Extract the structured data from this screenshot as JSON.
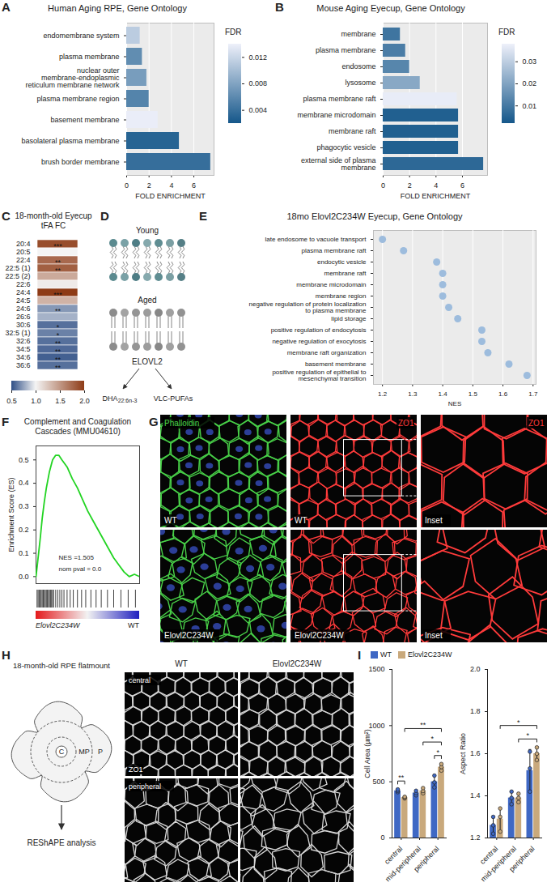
{
  "chart_data": [
    {
      "panel": "A",
      "type": "bar",
      "orientation": "horizontal",
      "title": "Human Aging RPE, Gene Ontology",
      "x_label": "FOLD ENRICHMENT",
      "categories": [
        "endomembrane system",
        "plasma membrane",
        "nuclear outer membrane-endoplasmic reticulum membrane network",
        "plasma membrane region",
        "basement membrane",
        "basolateral plasma membrane",
        "brush border membrane"
      ],
      "values": [
        1.2,
        1.4,
        1.8,
        2.0,
        2.8,
        4.7,
        7.5
      ],
      "fdr": [
        0.0112,
        0.0062,
        0.0075,
        0.0055,
        0.0138,
        0.003,
        0.0038
      ],
      "xlim": [
        0,
        7.8
      ],
      "xticks": [
        0,
        2,
        4,
        6
      ],
      "grid": true,
      "colorbar": {
        "label": "FDR",
        "range": [
          0.002,
          0.014
        ],
        "ticks": [
          0.012,
          0.008,
          0.004
        ],
        "colors": [
          "#15578a",
          "#eef0fa"
        ]
      }
    },
    {
      "panel": "B",
      "type": "bar",
      "orientation": "horizontal",
      "title": "Mouse Aging Eyecup, Gene Ontology",
      "x_label": "FOLD ENRICHMENT",
      "categories": [
        "membrane",
        "plasma membrane",
        "endosome",
        "lysosome",
        "plasma membrane raft",
        "membrane microdomain",
        "membrane raft",
        "phagocytic vesicle",
        "external side of plasma membrane"
      ],
      "values": [
        1.3,
        1.7,
        2.0,
        2.8,
        5.6,
        5.7,
        5.7,
        5.7,
        7.6
      ],
      "fdr": [
        0.009,
        0.011,
        0.013,
        0.021,
        0.037,
        0.004,
        0.004,
        0.004,
        0.006
      ],
      "xlim": [
        0,
        7.9
      ],
      "xticks": [
        0,
        2,
        4,
        6
      ],
      "grid": true,
      "colorbar": {
        "label": "FDR",
        "range": [
          0.002,
          0.038
        ],
        "ticks": [
          0.03,
          0.02,
          0.01
        ],
        "colors": [
          "#15578a",
          "#eef0fa"
        ]
      }
    },
    {
      "panel": "C",
      "type": "heatmap",
      "title": "18-month-old Eyecup tFA FC",
      "categories": [
        "20:4",
        "20:5",
        "22:4",
        "22:5 (1)",
        "22:5 (2)",
        "22:6",
        "24:4",
        "24:5",
        "24:6",
        "26:6",
        "30:6",
        "32:5 (1)",
        "32:6",
        "34:5",
        "34:6",
        "36:6"
      ],
      "values": [
        1.9,
        1.0,
        1.75,
        1.8,
        1.4,
        1.05,
        2.0,
        1.35,
        0.72,
        0.8,
        0.6,
        0.65,
        0.6,
        0.58,
        0.55,
        0.6
      ],
      "significance": [
        "***",
        null,
        "**",
        "**",
        null,
        null,
        "***",
        null,
        "**",
        null,
        "*",
        "*",
        "**",
        "**",
        "**",
        "**"
      ],
      "colorbar": {
        "range": [
          0.5,
          2.0
        ],
        "mid": 1.0,
        "ticks": [
          0.5,
          {
            "value": 1,
            "label": "1.0"
          },
          1.5,
          {
            "value": 2,
            "label": "2.0"
          }
        ],
        "colors": [
          "#2f4f86",
          "#f4f4f4",
          "#8e3b16"
        ]
      }
    },
    {
      "panel": "E",
      "type": "dot",
      "orientation": "horizontal",
      "title": "18mo Elovl2C234W Eyecup, Gene Ontology",
      "x_label": "NES",
      "categories": [
        "late endosome to vacuole transport",
        "plasma membrane raft",
        "endocytic vesicle",
        "membrane raft",
        "membrane microdomain",
        "membrane region",
        "negative regulation of protein localization to plasma membrane",
        "lipid storage",
        "positive regulation of endocytosis",
        "negative regulation of exocytosis",
        "membrane raft organization",
        "basement membrane",
        "positive regulation of epithelial to mesenchymal transition"
      ],
      "values": [
        1.2,
        1.27,
        1.38,
        1.4,
        1.4,
        1.4,
        1.42,
        1.45,
        1.53,
        1.53,
        1.55,
        1.62,
        1.68
      ],
      "xlim": [
        1.17,
        1.71
      ],
      "xticks": [
        1.2,
        1.3,
        1.4,
        1.5,
        1.6,
        1.7
      ],
      "grid": true,
      "color": "#9dbcdd"
    },
    {
      "panel": "F",
      "type": "line",
      "title": "Complement and Coagulation Cascades (MMU04610)",
      "y_label": "Enrichment Score (ES)",
      "x": [
        0,
        2,
        4,
        6,
        8,
        10,
        13,
        16,
        19,
        22,
        25,
        30,
        35,
        40,
        45,
        50,
        55,
        60,
        65,
        70,
        75,
        80,
        85,
        90,
        95,
        100
      ],
      "values": [
        0,
        0.08,
        0.16,
        0.25,
        0.32,
        0.38,
        0.45,
        0.5,
        0.52,
        0.52,
        0.5,
        0.47,
        0.42,
        0.38,
        0.33,
        0.28,
        0.24,
        0.2,
        0.16,
        0.12,
        0.08,
        0.05,
        0.02,
        0,
        0.01,
        0
      ],
      "xlim": [
        0,
        100
      ],
      "ylim": [
        -0.03,
        0.56
      ],
      "yticks": [
        {
          "value": 0,
          "label": "0.0"
        },
        0.1,
        0.2,
        0.3,
        0.4,
        0.5
      ],
      "tick_labels": "y",
      "color": "#22d422",
      "annotations": [
        "NES =1.505",
        "nom pval = 0.0"
      ],
      "hits": [
        1,
        2,
        3,
        4,
        5,
        6,
        7,
        8,
        9,
        10,
        11,
        12,
        13,
        14,
        15,
        16,
        17,
        19,
        21,
        23,
        25,
        27,
        30,
        33,
        36,
        40,
        44,
        48,
        53,
        58,
        63,
        69,
        75,
        82,
        89,
        96
      ],
      "rank_labels": [
        "Elovl2C234W",
        "WT"
      ]
    },
    {
      "panel": "I",
      "type": "bar",
      "y_label": "Cell Area (µm²)",
      "legend": "top",
      "categories": [
        "central",
        "mid-peripheral",
        "peripheral"
      ],
      "ylim": [
        0,
        1500
      ],
      "yticks": [
        0,
        500,
        1000,
        1500
      ],
      "series": [
        {
          "name": "WT",
          "color": "#3f68c4",
          "values": [
            420,
            400,
            500
          ],
          "errors": [
            12,
            20,
            53
          ],
          "points": [
            [
              408,
              420,
              432
            ],
            [
              380,
              400,
              420
            ],
            [
              450,
              495,
              555
            ]
          ]
        },
        {
          "name": "Elovl2C234W",
          "color": "#c9a97c",
          "values": [
            360,
            420,
            630
          ],
          "errors": [
            7,
            23,
            29
          ],
          "points": [
            [
              352,
              362,
              366
            ],
            [
              398,
              418,
              444
            ],
            [
              600,
              632,
              658
            ]
          ]
        }
      ],
      "comparisons": [
        {
          "from": [
            "central",
            "WT"
          ],
          "to": [
            "central",
            "Elovl2C234W"
          ],
          "label": "**"
        },
        {
          "from": [
            "peripheral",
            "WT"
          ],
          "to": [
            "peripheral",
            "Elovl2C234W"
          ],
          "label": "*"
        },
        {
          "from": [
            "mid-peripheral",
            "Elovl2C234W"
          ],
          "to": [
            "peripheral",
            "Elovl2C234W"
          ],
          "label": "*"
        },
        {
          "from": [
            "central",
            "Elovl2C234W"
          ],
          "to": [
            "peripheral",
            "Elovl2C234W"
          ],
          "label": "**"
        }
      ]
    },
    {
      "panel": "I",
      "type": "bar",
      "y_label": "Aspect Ratio",
      "categories": [
        "central",
        "mid-peripheral",
        "peripheral"
      ],
      "ylim": [
        1.2,
        2.0
      ],
      "yticks": [
        1.2,
        1.4,
        1.6,
        1.8,
        {
          "value": 2,
          "label": "2.0"
        }
      ],
      "series": [
        {
          "name": "WT",
          "color": "#3f68c4",
          "values": [
            1.26,
            1.39,
            1.52
          ],
          "errors": [
            0.04,
            0.03,
            0.1
          ],
          "points": [
            [
              1.22,
              1.26,
              1.3
            ],
            [
              1.36,
              1.39,
              1.42
            ],
            [
              1.42,
              1.53,
              1.61
            ]
          ]
        },
        {
          "name": "Elovl2C234W",
          "color": "#c9a97c",
          "values": [
            1.29,
            1.39,
            1.6
          ],
          "errors": [
            0.05,
            0.02,
            0.03
          ],
          "points": [
            [
              1.23,
              1.3,
              1.34
            ],
            [
              1.37,
              1.39,
              1.41
            ],
            [
              1.57,
              1.6,
              1.63
            ]
          ]
        }
      ],
      "comparisons": [
        {
          "from": [
            "mid-peripheral",
            "Elovl2C234W"
          ],
          "to": [
            "peripheral",
            "Elovl2C234W"
          ],
          "label": "*"
        },
        {
          "from": [
            "central",
            "Elovl2C234W"
          ],
          "to": [
            "peripheral",
            "Elovl2C234W"
          ],
          "label": "*"
        }
      ]
    }
  ],
  "diagrams": [
    {
      "panel": "D",
      "type": "schematic",
      "young": "Young",
      "aged": "Aged",
      "enzyme": "ELOVL2",
      "products": [
        {
          "text": "DHA",
          "subscript": "22:6n-3"
        },
        {
          "text": "VLC-PUFAs"
        }
      ]
    },
    {
      "panel": "G",
      "type": "micrographs",
      "stains": [
        "Phalloidin",
        "ZO1"
      ],
      "genotypes": [
        "WT",
        "Elovl2C234W"
      ],
      "inset": "Inset"
    },
    {
      "panel": "H",
      "type": "flatmount",
      "title": "18-month-old RPE flatmount",
      "regions": [
        "C",
        "MP",
        "P"
      ],
      "method": "REShAPE analysis",
      "genotypes": [
        "WT",
        "Elovl2C234W"
      ],
      "locations": [
        "central",
        "peripheral"
      ],
      "stain": "ZO1"
    }
  ]
}
